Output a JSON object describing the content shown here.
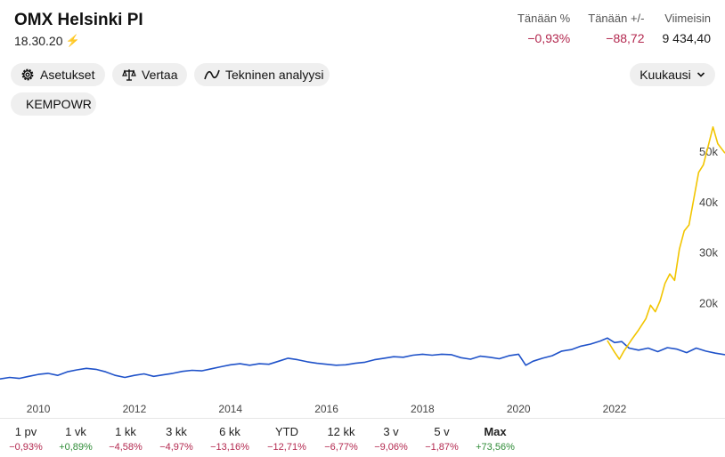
{
  "header": {
    "title": "OMX Helsinki PI",
    "time": "18.30.20",
    "stats": [
      {
        "label": "Tänään %",
        "value": "−0,93%",
        "tone": "neg"
      },
      {
        "label": "Tänään +/-",
        "value": "−88,72",
        "tone": "neg"
      },
      {
        "label": "Viimeisin",
        "value": "9 434,40",
        "tone": "plain"
      }
    ]
  },
  "toolbar": {
    "settings_label": "Asetukset",
    "compare_label": "Vertaa",
    "technical_label": "Tekninen analyysi",
    "period_label": "Kuukausi",
    "compare_chip": "KEMPOWR"
  },
  "colors": {
    "index_line": "#1f52c9",
    "compare_line": "#f2c500",
    "negative": "#b3284f",
    "positive": "#2e8b36"
  },
  "chart_data": {
    "type": "line",
    "x_ticks": [
      "2010",
      "2012",
      "2014",
      "2016",
      "2018",
      "2020",
      "2022"
    ],
    "y_ticks": [
      "50k",
      "40k",
      "30k",
      "20k"
    ],
    "x_range": [
      2009.2,
      2024.3
    ],
    "y_range": [
      0,
      56000
    ],
    "series": [
      {
        "key": "index",
        "points": [
          [
            2009.2,
            4900
          ],
          [
            2009.4,
            5200
          ],
          [
            2009.6,
            5000
          ],
          [
            2009.8,
            5400
          ],
          [
            2010.0,
            5800
          ],
          [
            2010.2,
            6000
          ],
          [
            2010.4,
            5600
          ],
          [
            2010.6,
            6300
          ],
          [
            2010.8,
            6700
          ],
          [
            2011.0,
            7000
          ],
          [
            2011.2,
            6800
          ],
          [
            2011.4,
            6300
          ],
          [
            2011.6,
            5600
          ],
          [
            2011.8,
            5200
          ],
          [
            2012.0,
            5600
          ],
          [
            2012.2,
            5900
          ],
          [
            2012.4,
            5400
          ],
          [
            2012.6,
            5700
          ],
          [
            2012.8,
            6000
          ],
          [
            2013.0,
            6400
          ],
          [
            2013.2,
            6600
          ],
          [
            2013.4,
            6500
          ],
          [
            2013.6,
            6900
          ],
          [
            2013.8,
            7300
          ],
          [
            2014.0,
            7700
          ],
          [
            2014.2,
            7900
          ],
          [
            2014.4,
            7600
          ],
          [
            2014.6,
            7900
          ],
          [
            2014.8,
            7800
          ],
          [
            2015.0,
            8400
          ],
          [
            2015.2,
            9000
          ],
          [
            2015.4,
            8700
          ],
          [
            2015.6,
            8300
          ],
          [
            2015.8,
            8000
          ],
          [
            2016.0,
            7800
          ],
          [
            2016.2,
            7600
          ],
          [
            2016.4,
            7700
          ],
          [
            2016.6,
            8000
          ],
          [
            2016.8,
            8200
          ],
          [
            2017.0,
            8700
          ],
          [
            2017.2,
            9000
          ],
          [
            2017.4,
            9300
          ],
          [
            2017.6,
            9200
          ],
          [
            2017.8,
            9600
          ],
          [
            2018.0,
            9800
          ],
          [
            2018.2,
            9600
          ],
          [
            2018.4,
            9800
          ],
          [
            2018.6,
            9700
          ],
          [
            2018.8,
            9100
          ],
          [
            2019.0,
            8800
          ],
          [
            2019.2,
            9400
          ],
          [
            2019.4,
            9200
          ],
          [
            2019.6,
            8900
          ],
          [
            2019.8,
            9500
          ],
          [
            2020.0,
            9800
          ],
          [
            2020.15,
            7600
          ],
          [
            2020.3,
            8400
          ],
          [
            2020.5,
            9000
          ],
          [
            2020.7,
            9500
          ],
          [
            2020.9,
            10400
          ],
          [
            2021.1,
            10700
          ],
          [
            2021.3,
            11400
          ],
          [
            2021.5,
            11800
          ],
          [
            2021.7,
            12400
          ],
          [
            2021.85,
            13000
          ],
          [
            2022.0,
            12100
          ],
          [
            2022.15,
            12300
          ],
          [
            2022.3,
            11000
          ],
          [
            2022.5,
            10600
          ],
          [
            2022.7,
            11000
          ],
          [
            2022.9,
            10300
          ],
          [
            2023.1,
            11100
          ],
          [
            2023.3,
            10800
          ],
          [
            2023.5,
            10100
          ],
          [
            2023.7,
            11000
          ],
          [
            2023.9,
            10400
          ],
          [
            2024.1,
            10000
          ],
          [
            2024.3,
            9700
          ]
        ]
      },
      {
        "key": "KEMPOWR",
        "points": [
          [
            2021.85,
            12500
          ],
          [
            2022.0,
            10200
          ],
          [
            2022.1,
            8800
          ],
          [
            2022.2,
            10500
          ],
          [
            2022.35,
            12600
          ],
          [
            2022.5,
            14600
          ],
          [
            2022.65,
            16800
          ],
          [
            2022.75,
            19500
          ],
          [
            2022.85,
            18200
          ],
          [
            2022.95,
            20400
          ],
          [
            2023.05,
            23800
          ],
          [
            2023.15,
            25700
          ],
          [
            2023.25,
            24400
          ],
          [
            2023.35,
            30600
          ],
          [
            2023.45,
            34200
          ],
          [
            2023.55,
            35400
          ],
          [
            2023.65,
            40600
          ],
          [
            2023.75,
            45800
          ],
          [
            2023.85,
            47300
          ],
          [
            2023.95,
            51000
          ],
          [
            2024.05,
            54800
          ],
          [
            2024.15,
            51500
          ],
          [
            2024.3,
            49600
          ]
        ]
      }
    ]
  },
  "periods": [
    {
      "label": "1 pv",
      "value": "−0,93%",
      "tone": "neg"
    },
    {
      "label": "1 vk",
      "value": "+0,89%",
      "tone": "pos"
    },
    {
      "label": "1 kk",
      "value": "−4,58%",
      "tone": "neg"
    },
    {
      "label": "3 kk",
      "value": "−4,97%",
      "tone": "neg"
    },
    {
      "label": "6 kk",
      "value": "−13,16%",
      "tone": "neg"
    },
    {
      "label": "YTD",
      "value": "−12,71%",
      "tone": "neg"
    },
    {
      "label": "12 kk",
      "value": "−6,77%",
      "tone": "neg"
    },
    {
      "label": "3 v",
      "value": "−9,06%",
      "tone": "neg"
    },
    {
      "label": "5 v",
      "value": "−1,87%",
      "tone": "neg"
    },
    {
      "label": "Max",
      "value": "+73,56%",
      "tone": "pos",
      "active": true
    }
  ]
}
